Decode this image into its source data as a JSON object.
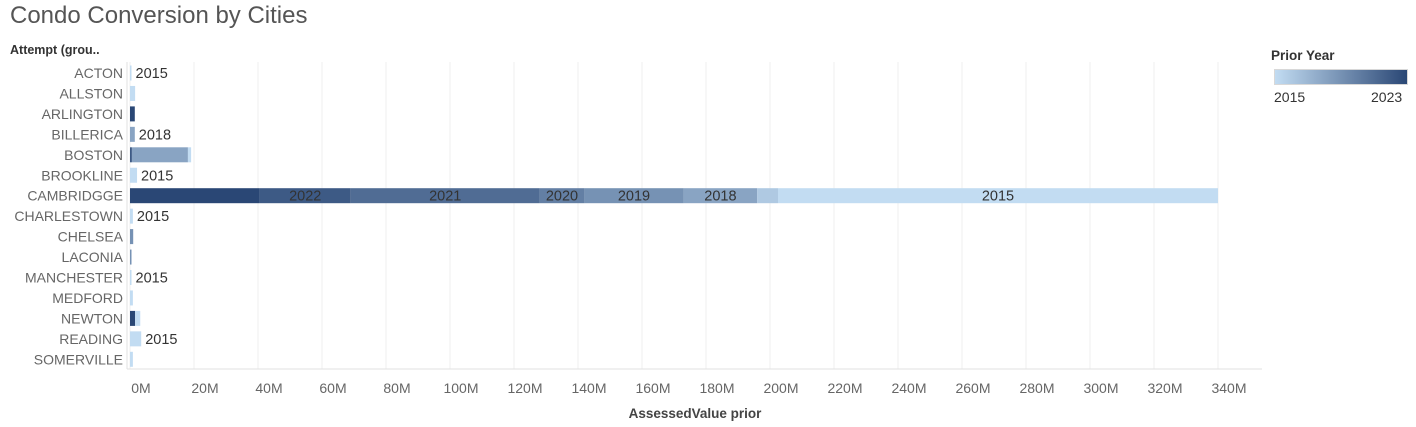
{
  "title": "Condo Conversion by Cities",
  "chart_data": {
    "type": "bar",
    "orientation": "horizontal",
    "stacked": true,
    "title": "Condo Conversion by Cities",
    "row_header": "Attempt (grou..",
    "xlabel": "AssessedValue prior",
    "ylabel": "",
    "xlim": [
      0,
      350
    ],
    "x_unit": "M",
    "x_ticks": [
      "0M",
      "20M",
      "40M",
      "60M",
      "80M",
      "100M",
      "120M",
      "140M",
      "160M",
      "180M",
      "200M",
      "220M",
      "240M",
      "260M",
      "280M",
      "300M",
      "320M",
      "340M"
    ],
    "categories": [
      "ACTON",
      "ALLSTON",
      "ARLINGTON",
      "BILLERICA",
      "BOSTON",
      "BROOKLINE",
      "CAMBRIDGGE",
      "CHARLESTOWN",
      "CHELSEA",
      "LACONIA",
      "MANCHESTER",
      "MEDFORD",
      "NEWTON",
      "READING",
      "SOMERVILLE"
    ],
    "legend": {
      "title": "Prior Year",
      "min_label": "2015",
      "max_label": "2023",
      "min_color": "#c2dcf2",
      "max_color": "#2a4775",
      "placement": "top-right"
    },
    "bars": [
      {
        "category": "ACTON",
        "segments": [
          {
            "year": 2015,
            "value": 0.3,
            "label": "2015"
          }
        ]
      },
      {
        "category": "ALLSTON",
        "segments": [
          {
            "year": 2015,
            "value": 1.6
          }
        ]
      },
      {
        "category": "ARLINGTON",
        "segments": [
          {
            "year": 2023,
            "value": 1.5
          }
        ]
      },
      {
        "category": "BILLERICA",
        "segments": [
          {
            "year": 2018,
            "value": 1.5,
            "label": "2018"
          }
        ]
      },
      {
        "category": "BOSTON",
        "segments": [
          {
            "year": 2022,
            "value": 0.6
          },
          {
            "year": 2018,
            "value": 17.5
          },
          {
            "year": 2015,
            "value": 1.0
          }
        ]
      },
      {
        "category": "BROOKLINE",
        "segments": [
          {
            "year": 2015,
            "value": 2.2,
            "label": "2015"
          }
        ]
      },
      {
        "category": "CAMBRIDGGE",
        "segments": [
          {
            "year": 2023,
            "value": 40.5
          },
          {
            "year": 2022,
            "value": 28.5,
            "label": "2022"
          },
          {
            "year": 2021,
            "value": 59.0,
            "label": "2021"
          },
          {
            "year": 2020,
            "value": 14.0,
            "label": "2020"
          },
          {
            "year": 2019,
            "value": 31.0,
            "label": "2019"
          },
          {
            "year": 2018,
            "value": 23.0,
            "label": "2018"
          },
          {
            "year": 2016,
            "value": 6.5
          },
          {
            "year": 2015,
            "value": 137.5,
            "label": "2015"
          }
        ]
      },
      {
        "category": "CHARLESTOWN",
        "segments": [
          {
            "year": 2015,
            "value": 0.9,
            "label": "2015"
          }
        ]
      },
      {
        "category": "CHELSEA",
        "segments": [
          {
            "year": 2019,
            "value": 1.0
          }
        ]
      },
      {
        "category": "LACONIA",
        "segments": [
          {
            "year": 2019,
            "value": 0.4
          }
        ]
      },
      {
        "category": "MANCHESTER",
        "segments": [
          {
            "year": 2015,
            "value": 0.3,
            "label": "2015"
          }
        ]
      },
      {
        "category": "MEDFORD",
        "segments": [
          {
            "year": 2015,
            "value": 0.9
          }
        ]
      },
      {
        "category": "NEWTON",
        "segments": [
          {
            "year": 2023,
            "value": 1.6
          },
          {
            "year": 2015,
            "value": 1.6
          }
        ]
      },
      {
        "category": "READING",
        "segments": [
          {
            "year": 2015,
            "value": 3.5,
            "label": "2015"
          }
        ]
      },
      {
        "category": "SOMERVILLE",
        "segments": [
          {
            "year": 2015,
            "value": 0.9
          }
        ]
      }
    ],
    "grid": true
  }
}
